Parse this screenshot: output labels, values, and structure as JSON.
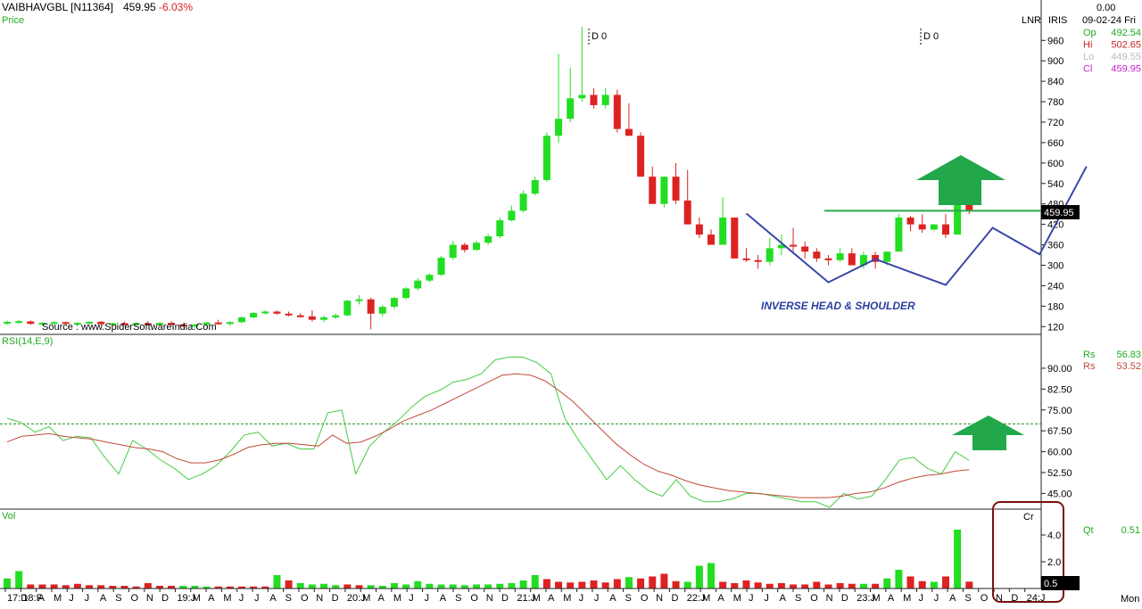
{
  "header": {
    "symbol": "VAIBHAVGBL [N11364]",
    "last": "459.95",
    "change": "-6.03%",
    "panel_label": "Price",
    "lnr": "LNR",
    "iris": "IRIS",
    "top_value": "0.00",
    "date": "09-02-24 Fri"
  },
  "ohlc": [
    {
      "label": "Op",
      "value": "492.54",
      "color": "#22aa22"
    },
    {
      "label": "Hi",
      "value": "502.65",
      "color": "#cc2222"
    },
    {
      "label": "Lo",
      "value": "449.55",
      "color": "#bbbbbb"
    },
    {
      "label": "Cl",
      "value": "459.95",
      "color": "#cc22cc"
    }
  ],
  "chart_data": [
    {
      "type": "candlestick",
      "panel": "price",
      "y_ticks": [
        960,
        900,
        840,
        780,
        720,
        660,
        600,
        540,
        480,
        420,
        360,
        300,
        240,
        180,
        120
      ],
      "ylim": [
        105,
        1000
      ],
      "x_labels": [
        "17:D",
        "18:F",
        "A",
        "M",
        "J",
        "J",
        "A",
        "S",
        "O",
        "N",
        "D",
        "19:J",
        "M",
        "A",
        "M",
        "J",
        "J",
        "A",
        "S",
        "O",
        "N",
        "D",
        "20:J",
        "M",
        "A",
        "M",
        "J",
        "J",
        "A",
        "S",
        "O",
        "N",
        "D",
        "21:J",
        "M",
        "A",
        "M",
        "J",
        "J",
        "A",
        "S",
        "O",
        "N",
        "D",
        "22:J",
        "M",
        "A",
        "M",
        "J",
        "J",
        "A",
        "S",
        "O",
        "N",
        "D",
        "23:J",
        "M",
        "A",
        "M",
        "J",
        "J",
        "A",
        "S",
        "O",
        "N",
        "D",
        "24:J"
      ],
      "candles": [
        [
          130,
          138,
          125,
          134
        ],
        [
          132,
          140,
          128,
          136
        ],
        [
          135,
          138,
          126,
          128
        ],
        [
          129,
          133,
          124,
          131
        ],
        [
          130,
          136,
          127,
          133
        ],
        [
          133,
          135,
          126,
          128
        ],
        [
          128,
          133,
          124,
          131
        ],
        [
          131,
          136,
          127,
          134
        ],
        [
          134,
          136,
          125,
          127
        ],
        [
          127,
          132,
          122,
          130
        ],
        [
          130,
          135,
          124,
          126
        ],
        [
          126,
          132,
          121,
          130
        ],
        [
          130,
          136,
          124,
          127
        ],
        [
          127,
          133,
          122,
          131
        ],
        [
          131,
          136,
          123,
          126
        ],
        [
          126,
          130,
          118,
          122
        ],
        [
          122,
          128,
          115,
          126
        ],
        [
          126,
          134,
          120,
          132
        ],
        [
          132,
          140,
          126,
          128
        ],
        [
          128,
          136,
          122,
          133
        ],
        [
          133,
          150,
          130,
          147
        ],
        [
          147,
          163,
          144,
          160
        ],
        [
          160,
          168,
          155,
          164
        ],
        [
          164,
          167,
          155,
          158
        ],
        [
          158,
          164,
          150,
          153
        ],
        [
          153,
          159,
          146,
          150
        ],
        [
          150,
          168,
          135,
          140
        ],
        [
          140,
          152,
          133,
          147
        ],
        [
          147,
          158,
          142,
          153
        ],
        [
          153,
          198,
          150,
          196
        ],
        [
          196,
          212,
          185,
          200
        ],
        [
          200,
          205,
          112,
          158
        ],
        [
          158,
          184,
          150,
          178
        ],
        [
          178,
          208,
          172,
          204
        ],
        [
          204,
          236,
          200,
          232
        ],
        [
          232,
          262,
          226,
          255
        ],
        [
          255,
          276,
          250,
          272
        ],
        [
          272,
          328,
          268,
          322
        ],
        [
          322,
          372,
          316,
          360
        ],
        [
          360,
          366,
          338,
          345
        ],
        [
          345,
          372,
          342,
          366
        ],
        [
          366,
          392,
          360,
          385
        ],
        [
          385,
          440,
          380,
          432
        ],
        [
          432,
          475,
          428,
          460
        ],
        [
          460,
          520,
          455,
          510
        ],
        [
          510,
          560,
          505,
          550
        ],
        [
          550,
          690,
          545,
          680
        ],
        [
          680,
          920,
          660,
          730
        ],
        [
          730,
          880,
          720,
          790
        ],
        [
          790,
          1000,
          780,
          800
        ],
        [
          800,
          820,
          760,
          770
        ],
        [
          770,
          820,
          760,
          800
        ],
        [
          800,
          815,
          690,
          700
        ],
        [
          700,
          775,
          680,
          680
        ],
        [
          680,
          690,
          560,
          560
        ],
        [
          560,
          590,
          480,
          480
        ],
        [
          480,
          560,
          470,
          560
        ],
        [
          560,
          600,
          480,
          490
        ],
        [
          490,
          580,
          420,
          420
        ],
        [
          420,
          440,
          380,
          390
        ],
        [
          390,
          405,
          360,
          360
        ],
        [
          360,
          500,
          360,
          440
        ],
        [
          440,
          440,
          320,
          320
        ],
        [
          320,
          350,
          310,
          315
        ],
        [
          315,
          330,
          290,
          310
        ],
        [
          310,
          380,
          300,
          350
        ],
        [
          350,
          390,
          330,
          360
        ],
        [
          360,
          410,
          340,
          355
        ],
        [
          355,
          370,
          320,
          340
        ],
        [
          340,
          350,
          310,
          320
        ],
        [
          320,
          330,
          300,
          315
        ],
        [
          315,
          350,
          310,
          335
        ],
        [
          335,
          350,
          300,
          300
        ],
        [
          300,
          340,
          290,
          330
        ],
        [
          330,
          340,
          290,
          310
        ],
        [
          310,
          340,
          300,
          340
        ],
        [
          340,
          450,
          340,
          440
        ],
        [
          440,
          445,
          400,
          420
        ],
        [
          420,
          450,
          395,
          405
        ],
        [
          405,
          420,
          400,
          420
        ],
        [
          420,
          450,
          380,
          390
        ],
        [
          390,
          540,
          390,
          490
        ],
        [
          490,
          502,
          450,
          460
        ]
      ]
    },
    {
      "type": "line",
      "panel": "rsi",
      "title": "RSI(14,E,9)",
      "y_ticks": [
        90.0,
        82.5,
        75.0,
        67.5,
        60.0,
        52.5,
        45.0
      ],
      "ylim": [
        40,
        98
      ],
      "reference_line": 70,
      "series": [
        {
          "name": "Rs",
          "color": "#44cc44",
          "values": [
            72,
            70.5,
            67,
            69,
            64,
            65.5,
            65,
            58,
            52,
            64,
            61,
            57,
            54,
            50,
            52,
            55,
            60,
            66,
            67,
            62,
            63,
            61,
            61,
            74,
            75,
            52,
            62,
            67,
            71,
            76,
            80,
            82,
            85,
            86,
            88,
            93,
            94,
            94,
            92,
            88,
            72,
            64,
            57,
            50,
            55,
            50,
            46,
            44,
            50,
            44,
            42,
            42,
            43,
            45,
            45,
            44,
            43,
            42,
            42,
            40,
            45,
            43,
            44,
            50,
            57,
            58,
            54,
            52,
            60,
            56.83
          ]
        },
        {
          "name": "Rs",
          "color": "#c24a3a",
          "values": [
            63.5,
            65.5,
            66,
            66.5,
            65.5,
            65,
            64.5,
            63.5,
            62.5,
            61.5,
            61,
            60,
            57.5,
            56,
            56,
            57,
            59,
            61.5,
            62.5,
            63,
            63,
            62.5,
            62,
            66,
            63,
            63.5,
            65.5,
            68,
            71,
            73,
            75,
            77.5,
            80,
            82.5,
            85,
            87.5,
            88,
            87.5,
            85.5,
            82,
            78,
            73,
            68,
            63,
            59,
            55.5,
            53,
            51.5,
            49.5,
            48,
            47,
            46,
            45.5,
            45,
            44.5,
            44,
            43.5,
            43.5,
            43.5,
            44,
            45,
            45.5,
            47,
            49,
            50.5,
            51.5,
            52,
            53,
            53.52
          ]
        }
      ]
    },
    {
      "type": "bar",
      "panel": "volume",
      "title": "Vol",
      "unit": "Cr",
      "y_ticks": [
        4.0,
        2.0
      ],
      "ylim": [
        0,
        4.8
      ],
      "values": [
        0.75,
        1.3,
        0.3,
        0.3,
        0.3,
        0.25,
        0.35,
        0.25,
        0.25,
        0.2,
        0.2,
        0.15,
        0.4,
        0.2,
        0.2,
        0.2,
        0.2,
        0.15,
        0.15,
        0.15,
        0.15,
        0.15,
        0.15,
        1.0,
        0.6,
        0.4,
        0.3,
        0.35,
        0.25,
        0.3,
        0.25,
        0.25,
        0.2,
        0.4,
        0.3,
        0.55,
        0.35,
        0.3,
        0.3,
        0.25,
        0.3,
        0.3,
        0.35,
        0.4,
        0.6,
        1.0,
        0.7,
        0.5,
        0.45,
        0.5,
        0.6,
        0.45,
        0.7,
        0.85,
        0.75,
        0.9,
        1.1,
        0.55,
        0.5,
        1.7,
        1.9,
        0.5,
        0.4,
        0.6,
        0.45,
        0.35,
        0.4,
        0.3,
        0.3,
        0.5,
        0.3,
        0.4,
        0.35,
        0.35,
        0.35,
        0.75,
        1.4,
        0.9,
        0.55,
        0.5,
        0.9,
        4.4,
        0.51
      ],
      "up": [
        true,
        true,
        false,
        false,
        false,
        false,
        false,
        false,
        false,
        false,
        false,
        false,
        false,
        false,
        false,
        true,
        true,
        true,
        false,
        false,
        false,
        false,
        false,
        true,
        false,
        true,
        true,
        true,
        true,
        false,
        false,
        true,
        true,
        true,
        true,
        true,
        true,
        true,
        true,
        true,
        true,
        true,
        true,
        true,
        true,
        true,
        false,
        false,
        false,
        false,
        false,
        false,
        false,
        true,
        false,
        false,
        false,
        false,
        true,
        true,
        true,
        false,
        false,
        false,
        false,
        false,
        false,
        false,
        false,
        false,
        false,
        false,
        false,
        true,
        false,
        true,
        true,
        false,
        false,
        true,
        false,
        true,
        false
      ]
    }
  ],
  "indicators": {
    "rsi_legend": [
      {
        "label": "Rs",
        "value": "56.83",
        "color": "#22aa22"
      },
      {
        "label": "Rs",
        "value": "53.52",
        "color": "#c24a3a"
      }
    ],
    "vol_legend": {
      "label": "Qt",
      "value": "0.51"
    }
  },
  "annotations": {
    "pattern_label": "INVERSE HEAD & SHOULDER",
    "source": "Source : www.SpiderSoftwareIndia.Com",
    "dividend_1": "D 0",
    "dividend_2": "D 0",
    "price_badge": "459.95",
    "vol_badge": "0.5",
    "corner_day": "Mon",
    "neckline_price": 460,
    "pattern_path": [
      [
        63,
        452
      ],
      [
        70,
        250
      ],
      [
        74,
        318
      ],
      [
        80,
        242
      ],
      [
        84,
        410
      ],
      [
        88,
        332
      ],
      [
        92,
        590
      ]
    ]
  }
}
